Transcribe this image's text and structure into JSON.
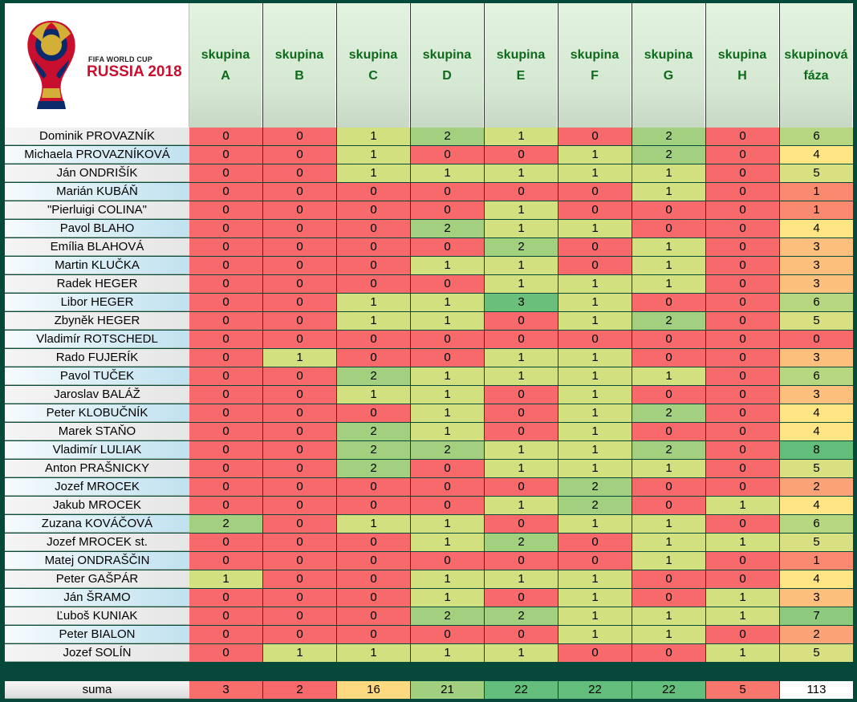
{
  "logo": {
    "small": "FIFA WORLD CUP",
    "big": "RUSSIA 2018"
  },
  "headers": [
    [
      "skupina",
      "A"
    ],
    [
      "skupina",
      "B"
    ],
    [
      "skupina",
      "C"
    ],
    [
      "skupina",
      "D"
    ],
    [
      "skupina",
      "E"
    ],
    [
      "skupina",
      "F"
    ],
    [
      "skupina",
      "G"
    ],
    [
      "skupina",
      "H"
    ],
    [
      "skupinová",
      "fáza"
    ]
  ],
  "rows": [
    {
      "name": "Dominik PROVAZNÍK",
      "values": [
        0,
        0,
        1,
        2,
        1,
        0,
        2,
        0,
        6
      ]
    },
    {
      "name": "Michaela PROVAZNÍKOVÁ",
      "values": [
        0,
        0,
        1,
        0,
        0,
        1,
        2,
        0,
        4
      ]
    },
    {
      "name": "Ján ONDRIŠÍK",
      "values": [
        0,
        0,
        1,
        1,
        1,
        1,
        1,
        0,
        5
      ]
    },
    {
      "name": "Marián KUBÁŇ",
      "values": [
        0,
        0,
        0,
        0,
        0,
        0,
        1,
        0,
        1
      ]
    },
    {
      "name": "\"Pierluigi COLINA\"",
      "values": [
        0,
        0,
        0,
        0,
        1,
        0,
        0,
        0,
        1
      ]
    },
    {
      "name": "Pavol BLAHO",
      "values": [
        0,
        0,
        0,
        2,
        1,
        1,
        0,
        0,
        4
      ]
    },
    {
      "name": "Emília BLAHOVÁ",
      "values": [
        0,
        0,
        0,
        0,
        2,
        0,
        1,
        0,
        3
      ]
    },
    {
      "name": "Martin KLUČKA",
      "values": [
        0,
        0,
        0,
        1,
        1,
        0,
        1,
        0,
        3
      ]
    },
    {
      "name": "Radek HEGER",
      "values": [
        0,
        0,
        0,
        0,
        1,
        1,
        1,
        0,
        3
      ]
    },
    {
      "name": "Libor HEGER",
      "values": [
        0,
        0,
        1,
        1,
        3,
        1,
        0,
        0,
        6
      ]
    },
    {
      "name": "Zbyněk HEGER",
      "values": [
        0,
        0,
        1,
        1,
        0,
        1,
        2,
        0,
        5
      ]
    },
    {
      "name": "Vladimír ROTSCHEDL",
      "values": [
        0,
        0,
        0,
        0,
        0,
        0,
        0,
        0,
        0
      ]
    },
    {
      "name": "Rado FUJERÍK",
      "values": [
        0,
        1,
        0,
        0,
        1,
        1,
        0,
        0,
        3
      ]
    },
    {
      "name": "Pavol TUČEK",
      "values": [
        0,
        0,
        2,
        1,
        1,
        1,
        1,
        0,
        6
      ]
    },
    {
      "name": "Jaroslav BALÁŽ",
      "values": [
        0,
        0,
        1,
        1,
        0,
        1,
        0,
        0,
        3
      ]
    },
    {
      "name": "Peter KLOBUČNÍK",
      "values": [
        0,
        0,
        0,
        1,
        0,
        1,
        2,
        0,
        4
      ]
    },
    {
      "name": "Marek STAŇO",
      "values": [
        0,
        0,
        2,
        1,
        0,
        1,
        0,
        0,
        4
      ]
    },
    {
      "name": "Vladimír LULIAK",
      "values": [
        0,
        0,
        2,
        2,
        1,
        1,
        2,
        0,
        8
      ]
    },
    {
      "name": "Anton PRAŠNICKY",
      "values": [
        0,
        0,
        2,
        0,
        1,
        1,
        1,
        0,
        5
      ]
    },
    {
      "name": "Jozef MROCEK",
      "values": [
        0,
        0,
        0,
        0,
        0,
        2,
        0,
        0,
        2
      ]
    },
    {
      "name": "Jakub MROCEK",
      "values": [
        0,
        0,
        0,
        0,
        1,
        2,
        0,
        1,
        4
      ]
    },
    {
      "name": "Zuzana KOVÁČOVÁ",
      "values": [
        2,
        0,
        1,
        1,
        0,
        1,
        1,
        0,
        6
      ]
    },
    {
      "name": "Jozef MROCEK st.",
      "values": [
        0,
        0,
        0,
        1,
        2,
        0,
        1,
        1,
        5
      ]
    },
    {
      "name": "Matej ONDRAŠČIN",
      "values": [
        0,
        0,
        0,
        0,
        0,
        0,
        1,
        0,
        1
      ]
    },
    {
      "name": "Peter GAŠPÁR",
      "values": [
        1,
        0,
        0,
        1,
        1,
        1,
        0,
        0,
        4
      ]
    },
    {
      "name": "Ján ŠRAMO",
      "values": [
        0,
        0,
        0,
        1,
        0,
        1,
        0,
        1,
        3
      ]
    },
    {
      "name": "Ľuboš KUNIAK",
      "values": [
        0,
        0,
        0,
        2,
        2,
        1,
        1,
        1,
        7
      ]
    },
    {
      "name": "Peter BIALON",
      "values": [
        0,
        0,
        0,
        0,
        0,
        1,
        1,
        0,
        2
      ]
    },
    {
      "name": "Jozef SOLÍN",
      "values": [
        0,
        1,
        1,
        1,
        1,
        0,
        0,
        1,
        5
      ]
    }
  ],
  "sum": {
    "label": "suma",
    "values": [
      3,
      2,
      16,
      21,
      22,
      22,
      22,
      5,
      113
    ]
  },
  "colors": {
    "group": {
      "0": "#f8696b",
      "1": "#d3e080",
      "2": "#a3d07f",
      "3": "#6abf7b"
    },
    "total": {
      "0": "#f8696b",
      "1": "#f98a70",
      "2": "#fba276",
      "3": "#fdc07c",
      "4": "#ffe584",
      "5": "#d8e082",
      "6": "#b6d680",
      "7": "#8dca7e",
      "8": "#63be7b"
    },
    "sum": {
      "2": "#f8696b",
      "3": "#f86e6c",
      "5": "#f8766d",
      "16": "#fed97f",
      "21": "#a2cf7f",
      "22": "#63be7b"
    }
  }
}
